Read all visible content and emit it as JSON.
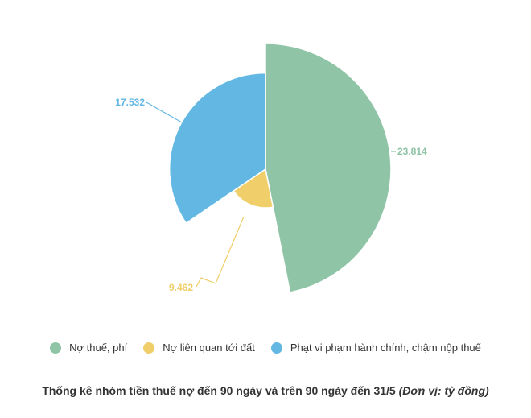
{
  "chart_data": {
    "type": "pie",
    "variant": "variable-radius",
    "series": [
      {
        "name": "Nợ thuế, phí",
        "value": 23814,
        "label": "23.814",
        "color": "#8fc4a7"
      },
      {
        "name": "Nợ liên quan tới đất",
        "value": 9462,
        "label": "9.462",
        "color": "#f0ce6a"
      },
      {
        "name": "Phạt vi phạm hành chính, chậm nộp thuế",
        "value": 17532,
        "label": "17.532",
        "color": "#62b8e3"
      }
    ],
    "legend_position": "bottom"
  },
  "caption": {
    "main": "Thống kê nhóm tiền thuế nợ đến 90 ngày và trên 90 ngày đến 31/5",
    "unit": "(Đơn vị: tỷ đồng)"
  }
}
